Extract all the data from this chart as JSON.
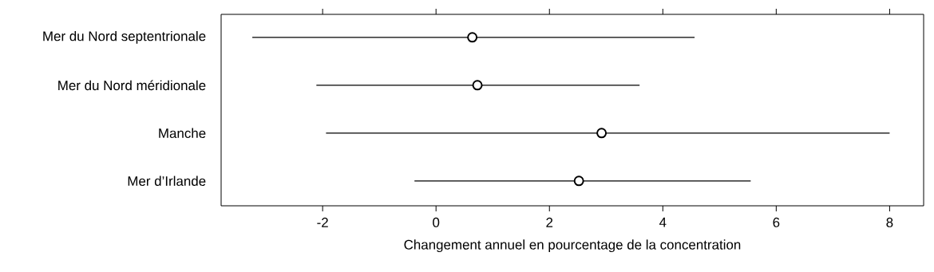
{
  "chart_data": {
    "type": "scatter",
    "orientation": "horizontal",
    "xlabel": "Changement annuel en pourcentage de la concentration",
    "categories": [
      "Mer du Nord septentrionale",
      "Mer du Nord méridionale",
      "Manche",
      "Mer d’Irlande"
    ],
    "values": [
      0.64,
      0.73,
      2.92,
      2.52
    ],
    "errors": [
      [
        -3.24,
        4.56
      ],
      [
        -2.11,
        3.59
      ],
      [
        -1.94,
        8.0
      ],
      [
        -0.38,
        5.55
      ]
    ],
    "color": "#000000",
    "xlim": [
      -3.79,
      8.6
    ],
    "xticks": [
      -2,
      0,
      2,
      4,
      6,
      8
    ]
  }
}
